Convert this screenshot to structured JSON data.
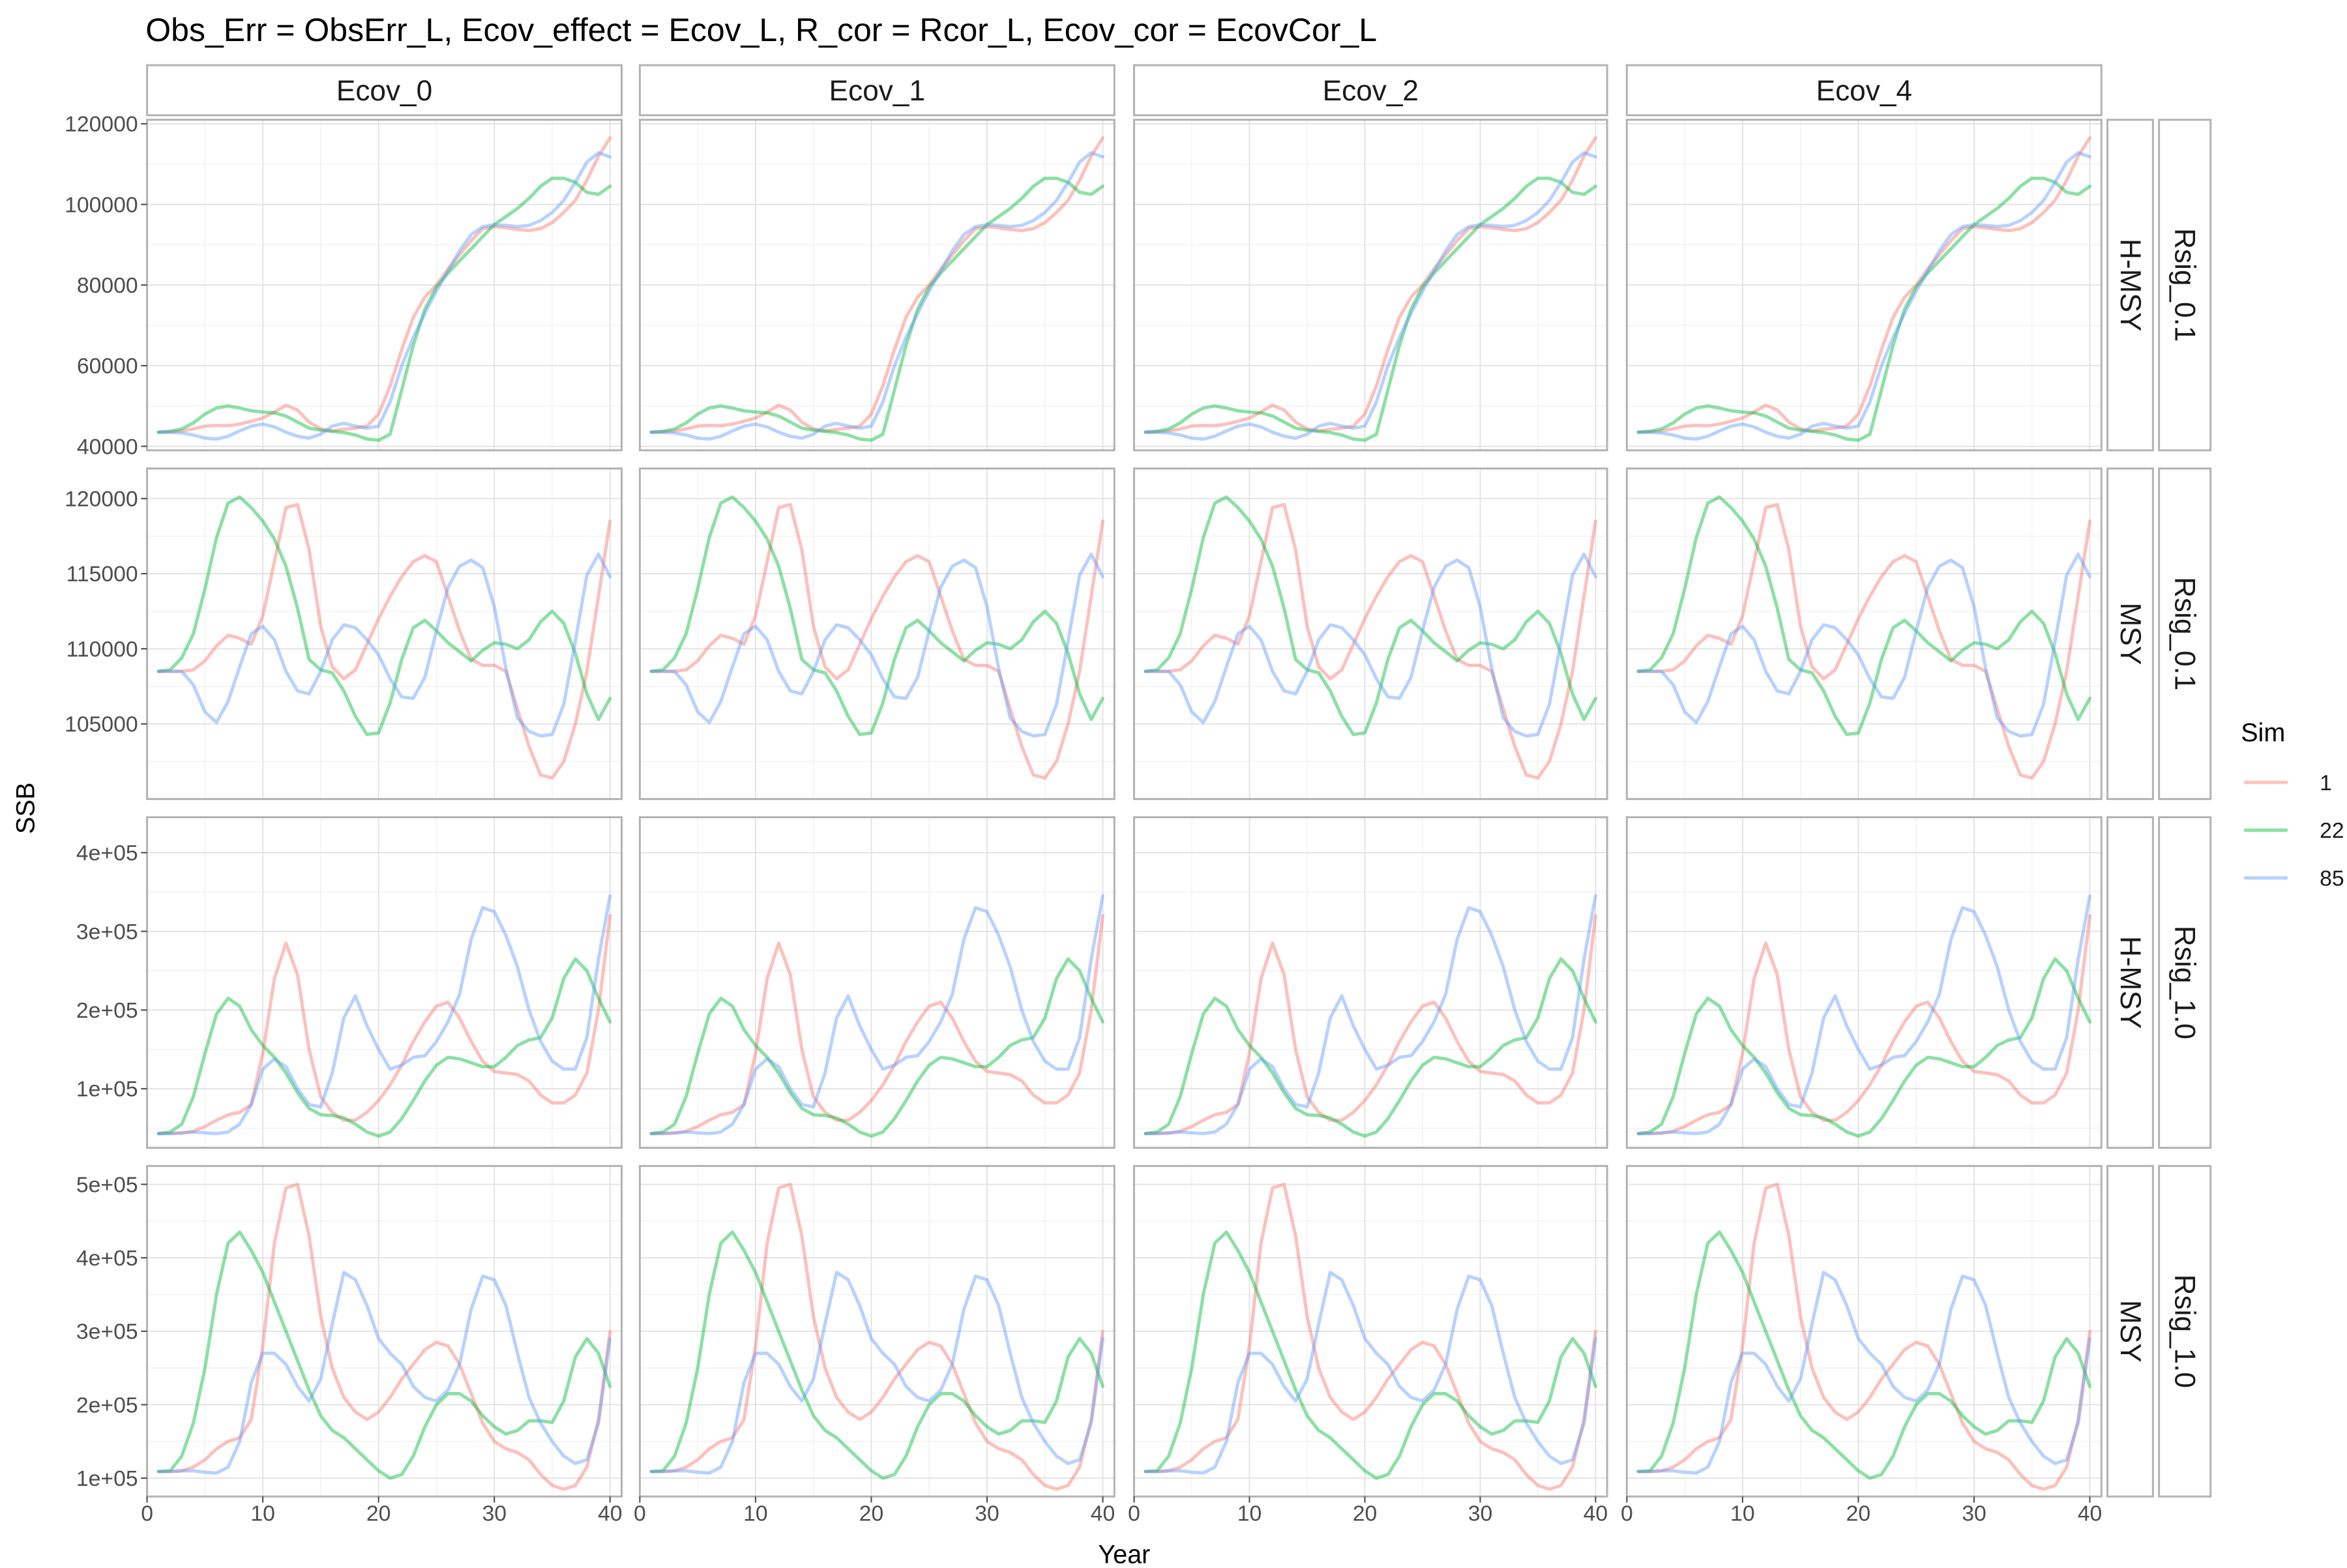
{
  "chart_data": {
    "type": "line",
    "title": "Obs_Err = ObsErr_L,   Ecov_effect = Ecov_L,   R_cor = Rcor_L,   Ecov_cor = EcovCor_L",
    "xlabel": "Year",
    "ylabel": "SSB",
    "legend": {
      "title": "Sim",
      "position": "right"
    },
    "grid": true,
    "x": [
      1,
      2,
      3,
      4,
      5,
      6,
      7,
      8,
      9,
      10,
      11,
      12,
      13,
      14,
      15,
      16,
      17,
      18,
      19,
      20,
      21,
      22,
      23,
      24,
      25,
      26,
      27,
      28,
      29,
      30,
      31,
      32,
      33,
      34,
      35,
      36,
      37,
      38,
      39,
      40
    ],
    "xlim": [
      0,
      41
    ],
    "x_ticks": [
      0,
      10,
      20,
      30,
      40
    ],
    "col_facets": [
      "Ecov_0",
      "Ecov_1",
      "Ecov_2",
      "Ecov_4"
    ],
    "row_facets": [
      {
        "inner": "H-MSY",
        "outer": "Rsig_0.1"
      },
      {
        "inner": "MSY",
        "outer": "Rsig_0.1"
      },
      {
        "inner": "H-MSY",
        "outer": "Rsig_1.0"
      },
      {
        "inner": "MSY",
        "outer": "Rsig_1.0"
      }
    ],
    "series_styles": [
      {
        "name": "1",
        "color": "#F8766D"
      },
      {
        "name": "22",
        "color": "#00BA38"
      },
      {
        "name": "85",
        "color": "#619CFF"
      }
    ],
    "rows": [
      {
        "ylim": [
          39000,
          121000
        ],
        "y_ticks": [
          40000,
          60000,
          80000,
          100000,
          120000
        ],
        "y_tick_labels": [
          "40000",
          "60000",
          "80000",
          "100000",
          "120000"
        ],
        "series": [
          {
            "name": "1",
            "values": [
              43500,
              43600,
              43800,
              44300,
              45000,
              45200,
              45100,
              45500,
              46200,
              47000,
              48500,
              50200,
              49000,
              46000,
              44300,
              43800,
              44200,
              44500,
              45000,
              48000,
              55000,
              64000,
              72000,
              77000,
              80000,
              84000,
              87500,
              91000,
              94000,
              94500,
              94200,
              93800,
              93500,
              94000,
              95500,
              98000,
              101000,
              106000,
              112000,
              116500
            ]
          },
          {
            "name": "22",
            "values": [
              43500,
              43700,
              44300,
              45800,
              48000,
              49500,
              50000,
              49500,
              48800,
              48500,
              48300,
              47500,
              46000,
              44500,
              44000,
              43700,
              43400,
              42800,
              41800,
              41500,
              43000,
              54000,
              65000,
              74000,
              79500,
              83000,
              86000,
              89000,
              92000,
              95000,
              97000,
              99000,
              101500,
              104500,
              106500,
              106500,
              105500,
              103000,
              102500,
              104500
            ]
          },
          {
            "name": "85",
            "values": [
              43500,
              43500,
              43300,
              42800,
              42000,
              41800,
              42500,
              43800,
              45000,
              45500,
              44800,
              43500,
              42500,
              42000,
              43000,
              45000,
              45700,
              45000,
              44500,
              45000,
              51000,
              60000,
              67000,
              73000,
              78500,
              83500,
              88500,
              92500,
              94500,
              95000,
              94800,
              94500,
              94800,
              96000,
              98000,
              101000,
              105500,
              110500,
              112800,
              111800
            ]
          }
        ]
      },
      {
        "ylim": [
          100000,
          122000
        ],
        "y_ticks": [
          105000,
          110000,
          115000,
          120000
        ],
        "y_tick_labels": [
          "105000",
          "110000",
          "115000",
          "120000"
        ],
        "series": [
          {
            "name": "1",
            "values": [
              108500,
              108500,
              108500,
              108600,
              109200,
              110200,
              110900,
              110700,
              110300,
              112200,
              115800,
              119400,
              119600,
              116600,
              111500,
              108800,
              108000,
              108600,
              110300,
              112000,
              113500,
              114800,
              115800,
              116200,
              115800,
              113500,
              111200,
              109300,
              108900,
              108900,
              108500,
              106000,
              103500,
              101600,
              101400,
              102500,
              105000,
              108500,
              113500,
              118500
            ]
          },
          {
            "name": "22",
            "values": [
              108500,
              108600,
              109400,
              111000,
              114000,
              117400,
              119700,
              120100,
              119400,
              118500,
              117300,
              115500,
              112700,
              109300,
              108600,
              108400,
              107200,
              105500,
              104300,
              104400,
              106400,
              109300,
              111400,
              111900,
              111200,
              110400,
              109800,
              109200,
              109900,
              110400,
              110300,
              110000,
              110600,
              111800,
              112500,
              111700,
              109700,
              107000,
              105300,
              106700
            ]
          },
          {
            "name": "85",
            "values": [
              108500,
              108500,
              108500,
              107600,
              105800,
              105100,
              106500,
              108800,
              111000,
              111500,
              110600,
              108500,
              107200,
              107000,
              108500,
              110600,
              111600,
              111400,
              110600,
              109600,
              108000,
              106800,
              106700,
              108100,
              111200,
              114100,
              115500,
              115900,
              115400,
              112800,
              108700,
              105400,
              104500,
              104200,
              104300,
              106300,
              110500,
              114900,
              116300,
              114800
            ]
          }
        ]
      },
      {
        "ylim": [
          25000,
          445000
        ],
        "y_ticks": [
          100000,
          200000,
          300000,
          400000
        ],
        "y_tick_labels": [
          "1e+05",
          "2e+05",
          "3e+05",
          "4e+05"
        ],
        "series": [
          {
            "name": "1",
            "values": [
              43000,
              43200,
              43500,
              46000,
              52000,
              60000,
              67000,
              70000,
              80000,
              145000,
              240000,
              285000,
              245000,
              150000,
              90000,
              70000,
              60000,
              60000,
              70000,
              85000,
              105000,
              130000,
              160000,
              185000,
              205000,
              210000,
              190000,
              160000,
              135000,
              122000,
              120000,
              118000,
              110000,
              92000,
              82000,
              82000,
              92000,
              120000,
              200000,
              320000
            ]
          },
          {
            "name": "22",
            "values": [
              43000,
              45000,
              55000,
              90000,
              145000,
              195000,
              215000,
              205000,
              175000,
              155000,
              140000,
              120000,
              95000,
              75000,
              67000,
              66000,
              63000,
              55000,
              45000,
              40000,
              45000,
              62000,
              85000,
              110000,
              130000,
              140000,
              138000,
              133000,
              128000,
              128000,
              140000,
              155000,
              162000,
              165000,
              190000,
              240000,
              265000,
              250000,
              215000,
              185000
            ]
          },
          {
            "name": "85",
            "values": [
              43000,
              43000,
              44000,
              45000,
              44000,
              43000,
              45000,
              55000,
              80000,
              125000,
              138000,
              128000,
              100000,
              80000,
              77000,
              120000,
              190000,
              218000,
              180000,
              150000,
              125000,
              130000,
              140000,
              142000,
              160000,
              185000,
              220000,
              290000,
              330000,
              325000,
              295000,
              255000,
              200000,
              160000,
              135000,
              125000,
              125000,
              165000,
              265000,
              345000
            ]
          }
        ]
      },
      {
        "ylim": [
          75000,
          525000
        ],
        "y_ticks": [
          100000,
          200000,
          300000,
          400000,
          500000
        ],
        "y_tick_labels": [
          "1e+05",
          "2e+05",
          "3e+05",
          "4e+05",
          "5e+05"
        ],
        "series": [
          {
            "name": "1",
            "values": [
              109000,
              109000,
              110000,
              115000,
              125000,
              140000,
              150000,
              155000,
              180000,
              280000,
              420000,
              495000,
              500000,
              430000,
              320000,
              250000,
              210000,
              190000,
              180000,
              190000,
              210000,
              235000,
              255000,
              275000,
              285000,
              280000,
              255000,
              215000,
              175000,
              150000,
              140000,
              135000,
              125000,
              105000,
              90000,
              85000,
              90000,
              115000,
              180000,
              300000
            ]
          },
          {
            "name": "22",
            "values": [
              109000,
              110000,
              130000,
              175000,
              250000,
              350000,
              420000,
              435000,
              410000,
              380000,
              340000,
              300000,
              260000,
              220000,
              185000,
              165000,
              155000,
              140000,
              125000,
              110000,
              100000,
              105000,
              130000,
              170000,
              200000,
              215000,
              215000,
              205000,
              185000,
              170000,
              160000,
              165000,
              178000,
              178000,
              176000,
              205000,
              265000,
              290000,
              270000,
              225000
            ]
          },
          {
            "name": "85",
            "values": [
              109000,
              109000,
              110000,
              110000,
              108000,
              107000,
              115000,
              150000,
              230000,
              270000,
              270000,
              255000,
              225000,
              205000,
              235000,
              310000,
              380000,
              370000,
              335000,
              290000,
              270000,
              255000,
              225000,
              210000,
              205000,
              220000,
              255000,
              330000,
              375000,
              370000,
              335000,
              270000,
              210000,
              175000,
              150000,
              130000,
              120000,
              125000,
              175000,
              290000
            ]
          }
        ]
      }
    ]
  }
}
